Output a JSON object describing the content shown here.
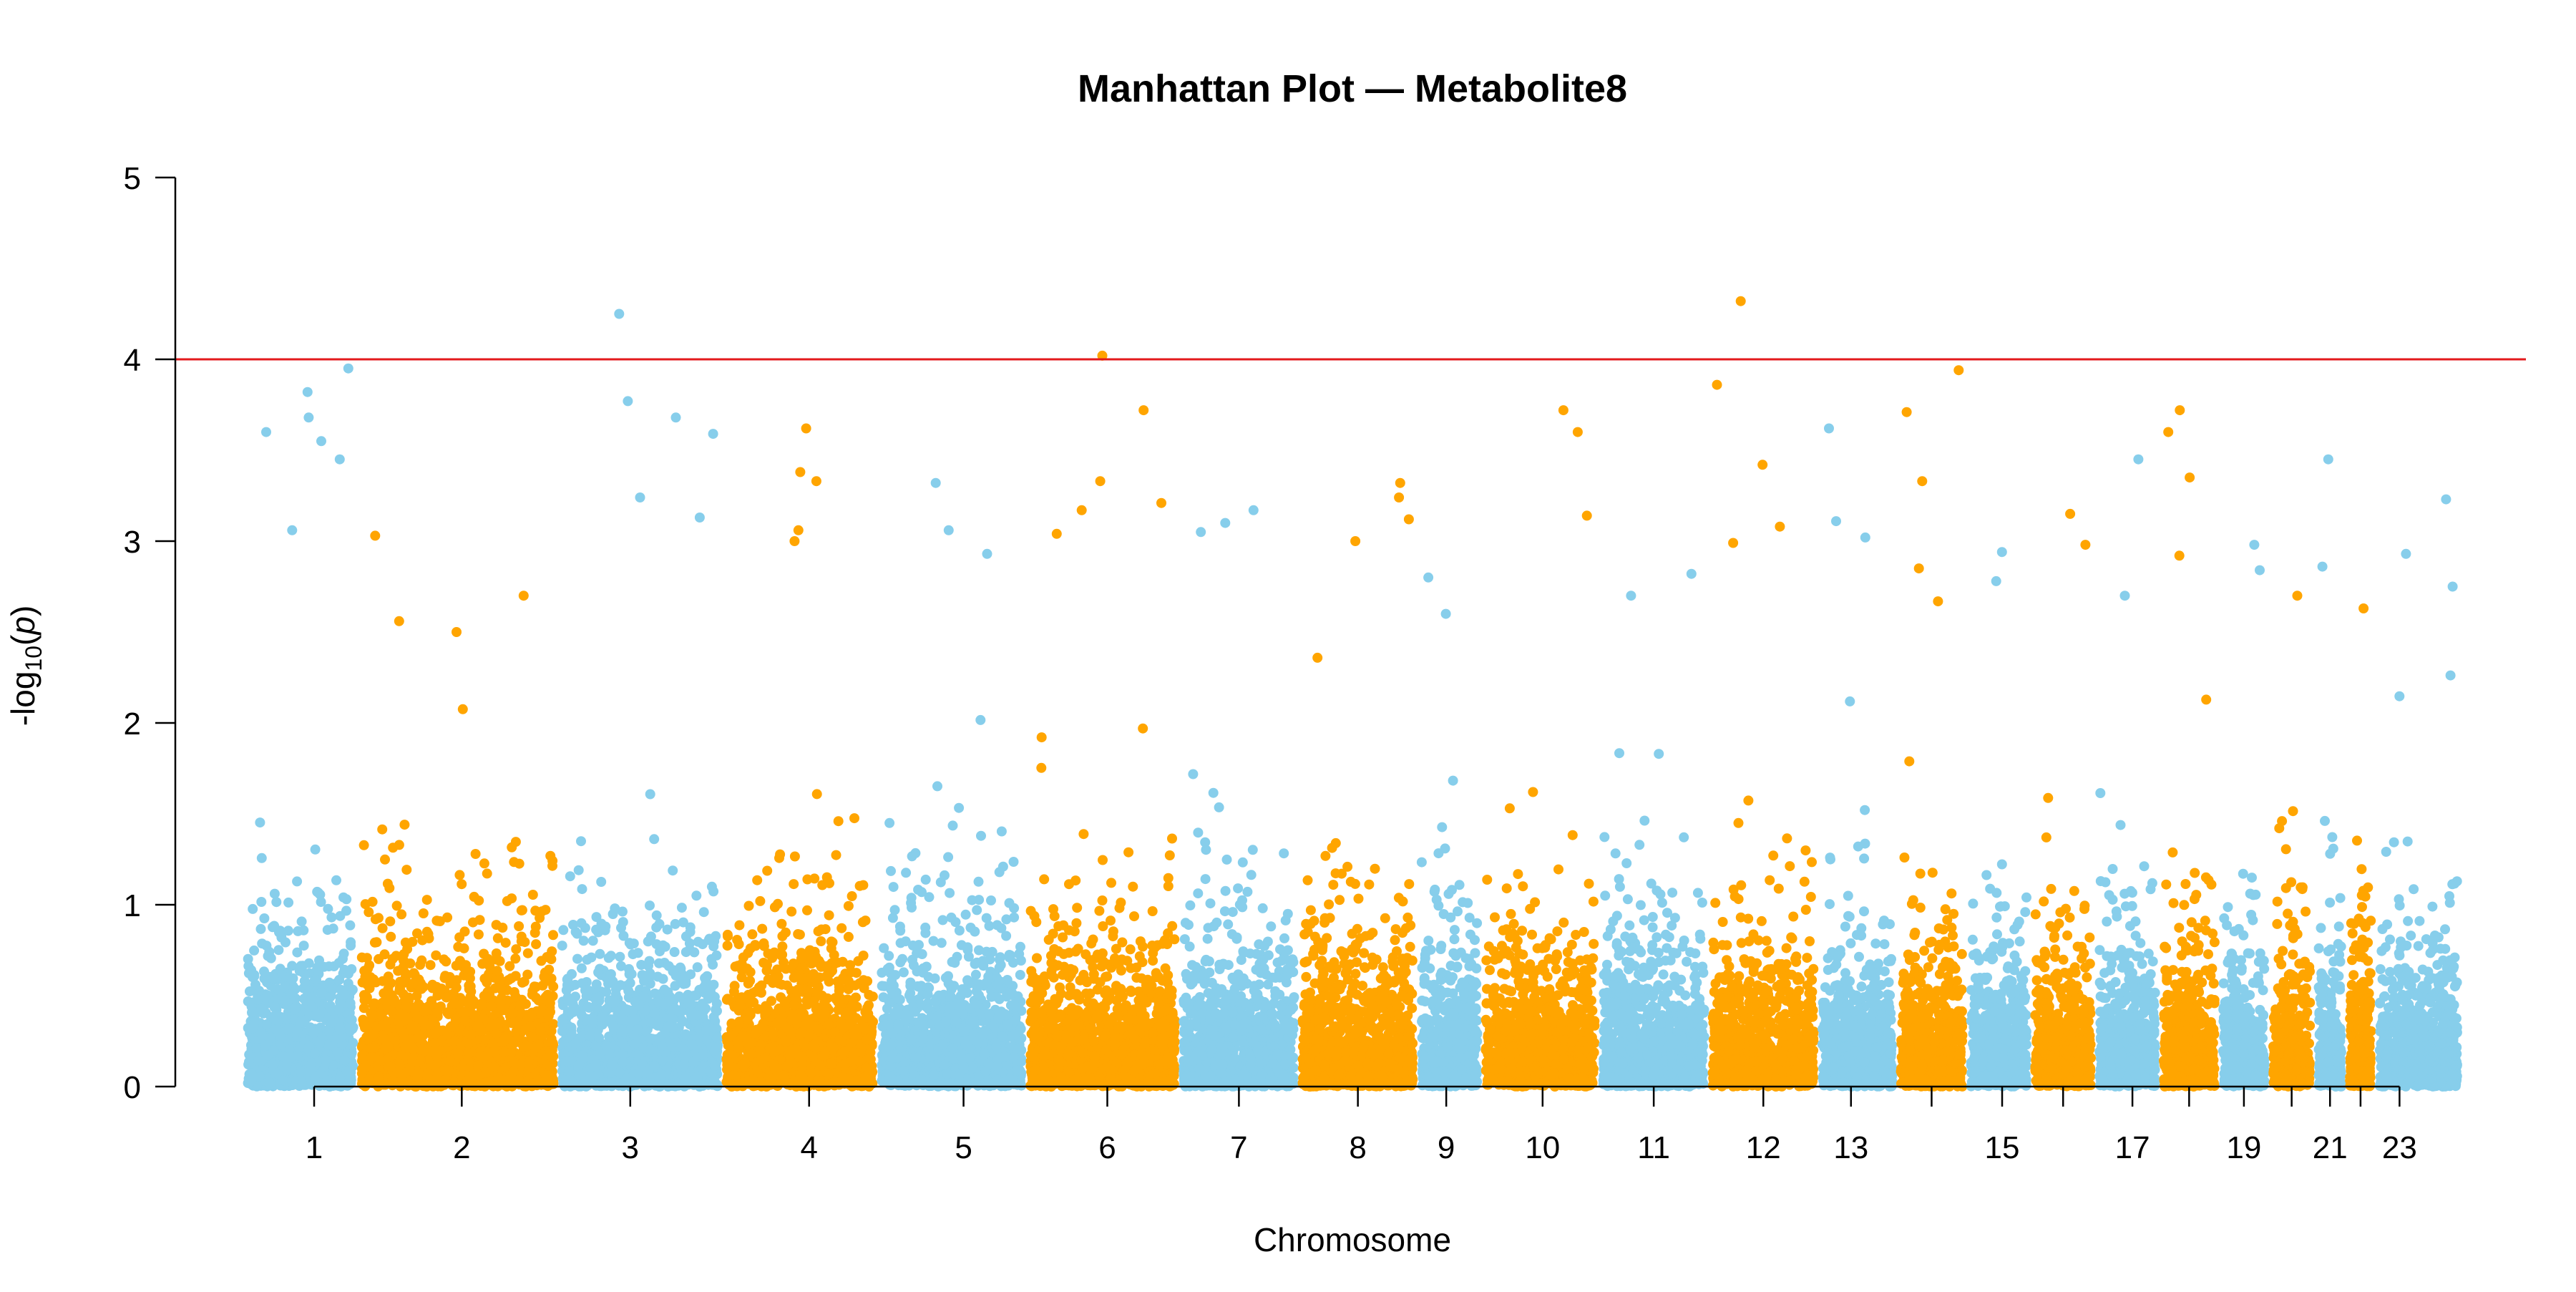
{
  "chart_data": {
    "type": "scatter",
    "subtype": "manhattan",
    "title": "Manhattan Plot — Metabolite8",
    "xlabel": "Chromosome",
    "ylabel_parts": {
      "prefix": "-log",
      "subscript": "10",
      "open": "(",
      "var": "p",
      "close": ")"
    },
    "ylim": [
      0,
      5
    ],
    "yticks": [
      "0",
      "1",
      "2",
      "3",
      "4",
      "5"
    ],
    "threshold": {
      "value": 4,
      "color": "#e31a1c"
    },
    "colors": [
      "#87ceeb",
      "#ffa500"
    ],
    "grid": false,
    "legend": false,
    "chromosomes": [
      {
        "chr": "1",
        "label": "1",
        "max": 3.95,
        "peaks": [
          3.95,
          3.82,
          3.68,
          3.6,
          3.55,
          3.45,
          3.06
        ]
      },
      {
        "chr": "2",
        "label": "2",
        "max": 3.03,
        "peaks": [
          3.03,
          2.7,
          2.56,
          2.5
        ]
      },
      {
        "chr": "3",
        "label": "3",
        "max": 4.25,
        "peaks": [
          4.25,
          3.77,
          3.68,
          3.59,
          3.24,
          3.13
        ]
      },
      {
        "chr": "4",
        "label": "4",
        "max": 3.62,
        "peaks": [
          3.62,
          3.38,
          3.33,
          3.06,
          3.0
        ]
      },
      {
        "chr": "5",
        "label": "5",
        "max": 3.32,
        "peaks": [
          3.32,
          3.06,
          2.93
        ]
      },
      {
        "chr": "6",
        "label": "6",
        "max": 4.02,
        "peaks": [
          4.02,
          3.72,
          3.33,
          3.21,
          3.17,
          3.04
        ]
      },
      {
        "chr": "7",
        "label": "7",
        "max": 3.17,
        "peaks": [
          3.17,
          3.1,
          3.05
        ]
      },
      {
        "chr": "8",
        "label": "8",
        "max": 3.32,
        "peaks": [
          3.32,
          3.24,
          3.12,
          3.0
        ]
      },
      {
        "chr": "9",
        "label": "9",
        "max": 2.8,
        "peaks": [
          2.8,
          2.6
        ]
      },
      {
        "chr": "10",
        "label": "10",
        "max": 3.72,
        "peaks": [
          3.72,
          3.6,
          3.14
        ]
      },
      {
        "chr": "11",
        "label": "11",
        "max": 2.82,
        "peaks": [
          2.82,
          2.7
        ]
      },
      {
        "chr": "12",
        "label": "12",
        "max": 4.32,
        "peaks": [
          4.32,
          3.86,
          3.42,
          3.08,
          2.99
        ]
      },
      {
        "chr": "13",
        "label": "13",
        "max": 3.62,
        "peaks": [
          3.62,
          3.11,
          3.02
        ]
      },
      {
        "chr": "14",
        "label": "",
        "max": 3.94,
        "peaks": [
          3.94,
          3.71,
          3.33,
          2.85
        ]
      },
      {
        "chr": "15",
        "label": "15",
        "max": 2.94,
        "peaks": [
          2.94,
          2.78
        ]
      },
      {
        "chr": "16",
        "label": "",
        "max": 3.15,
        "peaks": [
          3.15,
          2.98
        ]
      },
      {
        "chr": "17",
        "label": "17",
        "max": 3.45,
        "peaks": [
          3.45,
          2.7
        ]
      },
      {
        "chr": "18",
        "label": "",
        "max": 3.72,
        "peaks": [
          3.72,
          3.6,
          3.35,
          2.92
        ]
      },
      {
        "chr": "19",
        "label": "19",
        "max": 2.98,
        "peaks": [
          2.98,
          2.84
        ]
      },
      {
        "chr": "20",
        "label": "",
        "max": 2.7,
        "peaks": [
          2.7
        ]
      },
      {
        "chr": "21",
        "label": "21",
        "max": 3.45,
        "peaks": [
          3.45,
          2.86
        ]
      },
      {
        "chr": "22",
        "label": "",
        "max": 2.63,
        "peaks": [
          2.63
        ]
      },
      {
        "chr": "23",
        "label": "23",
        "max": 3.23,
        "peaks": [
          3.23,
          2.93,
          2.75
        ]
      }
    ]
  }
}
